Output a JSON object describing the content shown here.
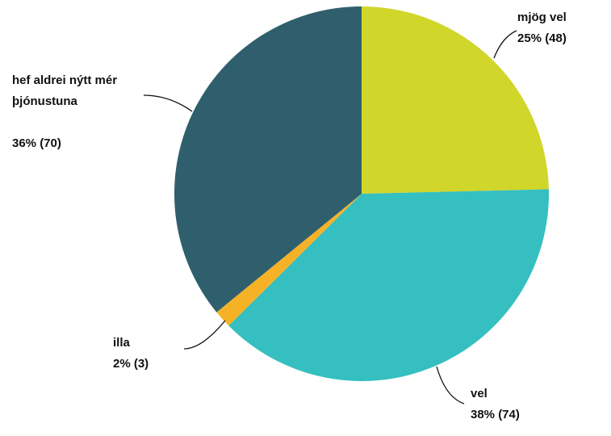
{
  "chart_data": {
    "type": "pie",
    "categories": [
      "mjög vel",
      "vel",
      "illa",
      "hef aldrei nýtt mér þjónustuna"
    ],
    "values": [
      48,
      74,
      3,
      70
    ],
    "value_labels": [
      "25% (48)",
      "38% (74)",
      "2% (3)",
      "36% (70)"
    ],
    "colors": [
      "#d0d62a",
      "#35bfc0",
      "#f6b227",
      "#2f5f6d"
    ]
  }
}
